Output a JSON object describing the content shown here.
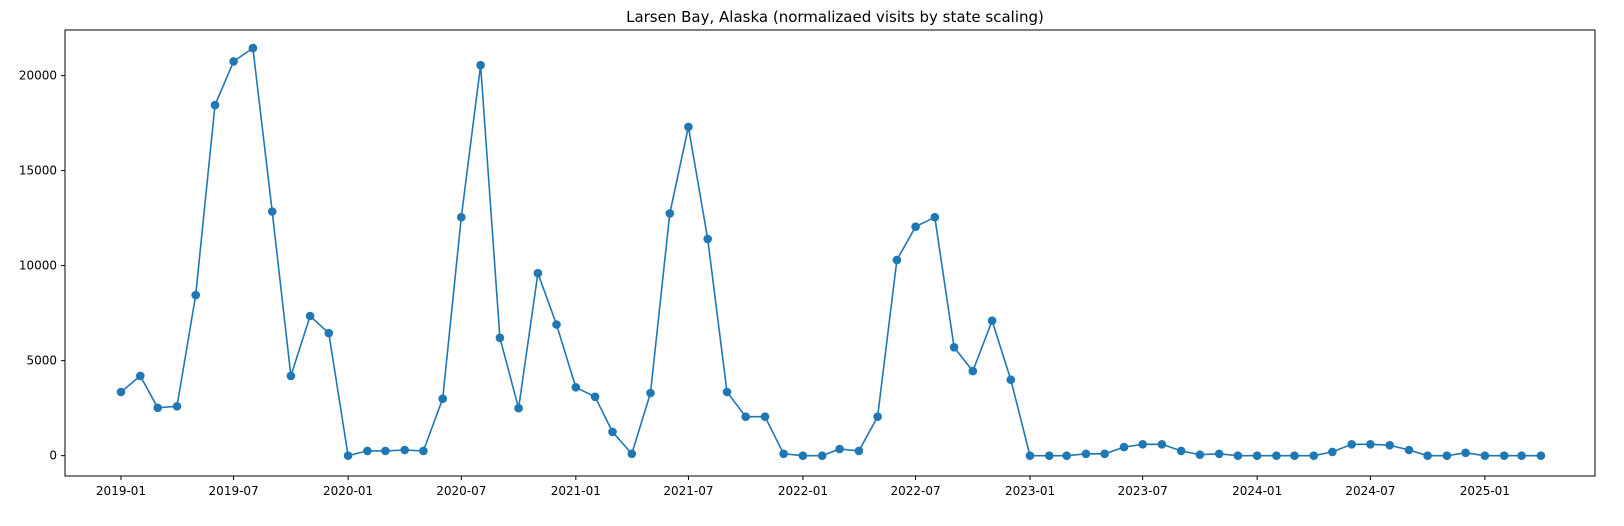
{
  "chart_data": {
    "type": "line",
    "title": "Larsen Bay, Alaska (normalizaed visits by state scaling)",
    "xlabel": "",
    "ylabel": "",
    "x_tick_labels": [
      "2019-01",
      "2019-07",
      "2020-01",
      "2020-07",
      "2021-01",
      "2021-07",
      "2022-01",
      "2022-07",
      "2023-01",
      "2023-07",
      "2024-01",
      "2024-07",
      "2025-01"
    ],
    "y_tick_labels": [
      "0",
      "5000",
      "10000",
      "15000",
      "20000"
    ],
    "y_ticks": [
      0,
      5000,
      10000,
      15000,
      20000
    ],
    "ylim": [
      -1070,
      22400
    ],
    "xlim": [
      "2018-10-03",
      "2025-06-27"
    ],
    "grid": false,
    "marker": "circle",
    "color": "#1f77b4",
    "series": [
      {
        "x": [
          "2019-01",
          "2019-02",
          "2019-03",
          "2019-04",
          "2019-05",
          "2019-06",
          "2019-07",
          "2019-08",
          "2019-09",
          "2019-10",
          "2019-11",
          "2019-12",
          "2020-01",
          "2020-02",
          "2020-03",
          "2020-04",
          "2020-05",
          "2020-06",
          "2020-07",
          "2020-08",
          "2020-09",
          "2020-10",
          "2020-11",
          "2020-12",
          "2021-01",
          "2021-02",
          "2021-03",
          "2021-04",
          "2021-05",
          "2021-06",
          "2021-07",
          "2021-08",
          "2021-09",
          "2021-10",
          "2021-11",
          "2021-12",
          "2022-01",
          "2022-02",
          "2022-03",
          "2022-04",
          "2022-05",
          "2022-06",
          "2022-07",
          "2022-08",
          "2022-09",
          "2022-10",
          "2022-11",
          "2022-12",
          "2023-01",
          "2023-02",
          "2023-03",
          "2023-04",
          "2023-05",
          "2023-06",
          "2023-07",
          "2023-08",
          "2023-09",
          "2023-10",
          "2023-11",
          "2023-12",
          "2024-01",
          "2024-02",
          "2024-03",
          "2024-04",
          "2024-05",
          "2024-06",
          "2024-07",
          "2024-08",
          "2024-09",
          "2024-10",
          "2024-11",
          "2024-12",
          "2025-01",
          "2025-02",
          "2025-03",
          "2025-04"
        ],
        "y": [
          3350,
          4200,
          2520,
          2600,
          8450,
          18450,
          20750,
          21450,
          12850,
          4200,
          7350,
          6450,
          0,
          250,
          250,
          300,
          250,
          3000,
          12550,
          20550,
          6200,
          2500,
          9600,
          6900,
          3600,
          3100,
          1250,
          100,
          3300,
          12750,
          17300,
          11400,
          3350,
          2050,
          2050,
          100,
          0,
          0,
          350,
          250,
          2050,
          10300,
          12050,
          12550,
          5700,
          4450,
          7100,
          4000,
          0,
          0,
          0,
          100,
          100,
          450,
          600,
          600,
          250,
          50,
          100,
          0,
          0,
          0,
          0,
          0,
          200,
          600,
          600,
          550,
          300,
          0,
          0,
          150,
          0,
          0,
          0,
          0
        ]
      }
    ]
  }
}
